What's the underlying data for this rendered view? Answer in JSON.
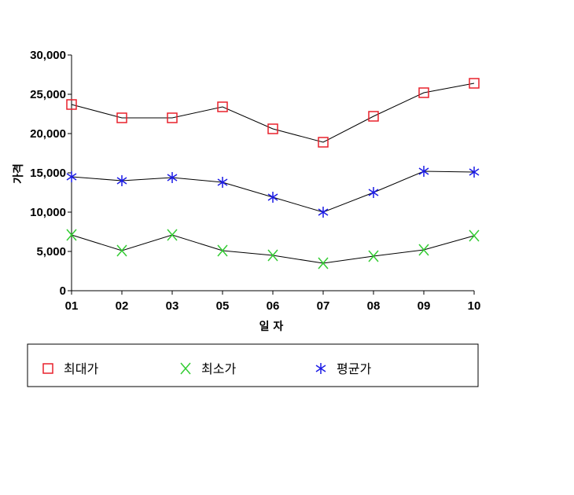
{
  "chart_data": {
    "type": "line",
    "title": "",
    "xlabel": "일 자",
    "ylabel": "가격",
    "categories": [
      "01",
      "02",
      "03",
      "05",
      "06",
      "07",
      "08",
      "09",
      "10"
    ],
    "y_ticks": [
      "0",
      "5,000",
      "10,000",
      "15,000",
      "20,000",
      "25,000",
      "30,000"
    ],
    "y_tick_values": [
      0,
      5000,
      10000,
      15000,
      20000,
      25000,
      30000
    ],
    "ylim": [
      0,
      30000
    ],
    "grid": false,
    "legend_placement": "bottom",
    "series": [
      {
        "name": "최대가",
        "marker": "square",
        "color": "#e8212b",
        "values": [
          23700,
          22000,
          22000,
          23400,
          20600,
          18900,
          22200,
          25200,
          26400
        ]
      },
      {
        "name": "최소가",
        "marker": "x",
        "color": "#33cc33",
        "values": [
          7100,
          5100,
          7100,
          5100,
          4500,
          3500,
          4400,
          5200,
          7000
        ]
      },
      {
        "name": "평균가",
        "marker": "asterisk",
        "color": "#1a1ae6",
        "values": [
          14500,
          14000,
          14400,
          13800,
          11900,
          10000,
          12500,
          15200,
          15100
        ]
      }
    ],
    "line_color": "#000000"
  }
}
